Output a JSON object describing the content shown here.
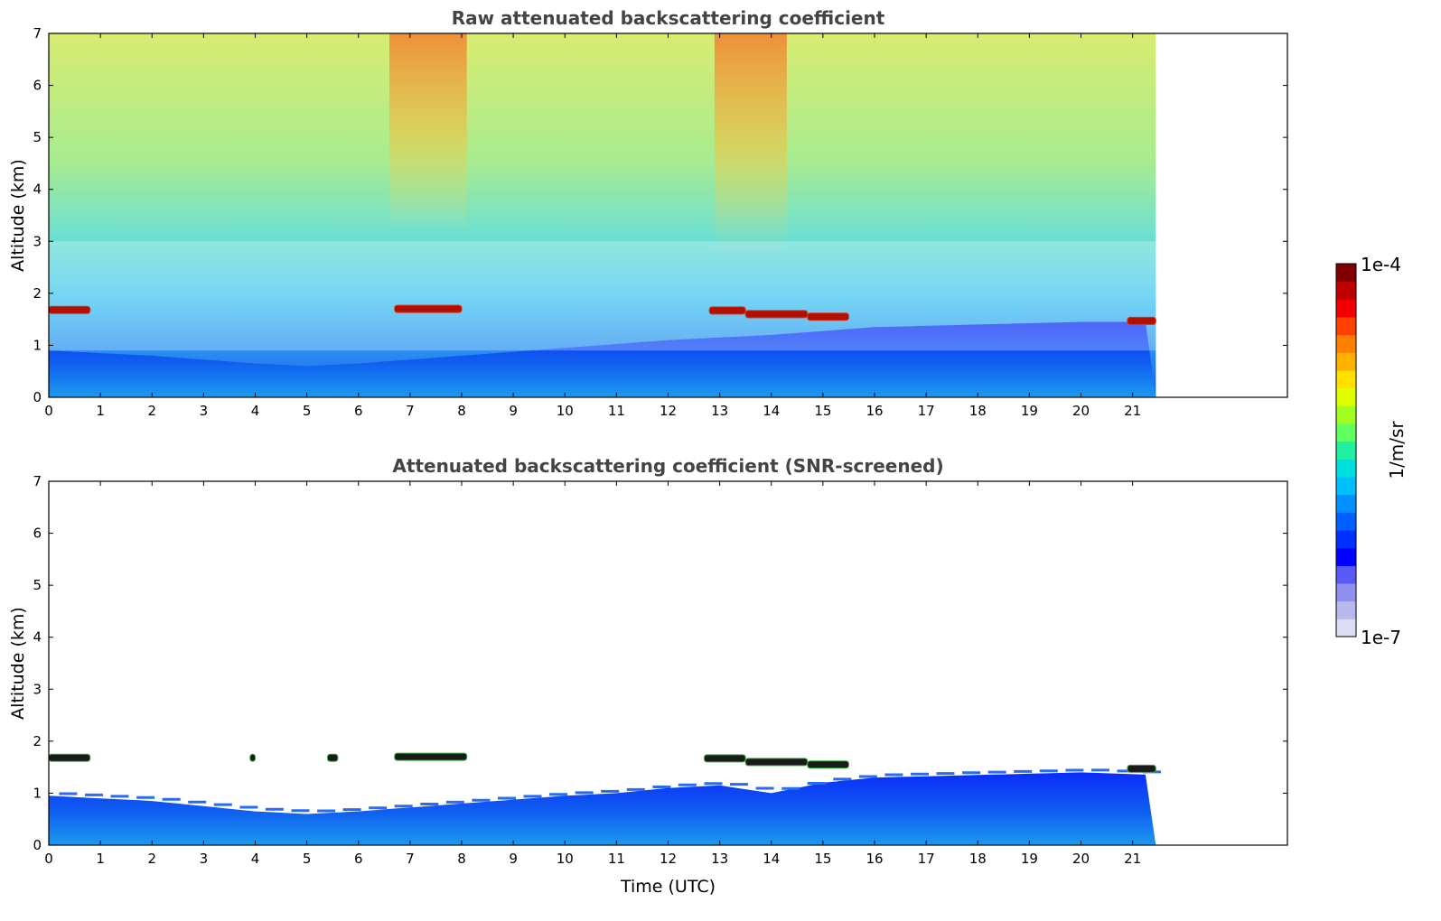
{
  "chart_data": [
    {
      "type": "heatmap",
      "title": "Raw attenuated backscattering coefficient",
      "xlabel": "",
      "ylabel": "Altitude (km)",
      "xlim": [
        0,
        24
      ],
      "ylim": [
        0,
        7
      ],
      "x_ticks": [
        0,
        1,
        2,
        3,
        4,
        5,
        6,
        7,
        8,
        9,
        10,
        11,
        12,
        13,
        14,
        15,
        16,
        17,
        18,
        19,
        20,
        21
      ],
      "y_ticks": [
        0,
        1,
        2,
        3,
        4,
        5,
        6,
        7
      ],
      "data_extent_hours": [
        0,
        21.45
      ],
      "background": "noisy speckled field: blue near ground, cyan/green mid-levels, green/yellow aloft, orange/red aloft near 7-8 h and 13-14 h",
      "features": [
        {
          "name": "cloud layer",
          "t_start": 0.0,
          "t_end": 0.8,
          "altitude_km": 1.68,
          "level": "high"
        },
        {
          "name": "cloud layer",
          "t_start": 6.7,
          "t_end": 8.0,
          "altitude_km": 1.7,
          "level": "high"
        },
        {
          "name": "cloud layer",
          "t_start": 12.8,
          "t_end": 13.5,
          "altitude_km": 1.67,
          "level": "high"
        },
        {
          "name": "cloud layer",
          "t_start": 13.5,
          "t_end": 14.7,
          "altitude_km": 1.6,
          "level": "high"
        },
        {
          "name": "cloud layer",
          "t_start": 14.7,
          "t_end": 15.5,
          "altitude_km": 1.55,
          "level": "high"
        },
        {
          "name": "cloud layer",
          "t_start": 20.9,
          "t_end": 21.45,
          "altitude_km": 1.47,
          "level": "high"
        }
      ],
      "boundary_layer_top_km": {
        "x": [
          0,
          2,
          4,
          5,
          6,
          8,
          10,
          12,
          14,
          16,
          18,
          20,
          21.45
        ],
        "y": [
          0.9,
          0.8,
          0.65,
          0.6,
          0.65,
          0.8,
          0.95,
          1.1,
          1.2,
          1.35,
          1.4,
          1.45,
          1.45
        ]
      }
    },
    {
      "type": "heatmap",
      "title": "Attenuated backscattering coefficient (SNR-screened)",
      "xlabel": "Time (UTC)",
      "ylabel": "Altitude (km)",
      "xlim": [
        0,
        24
      ],
      "ylim": [
        0,
        7
      ],
      "x_ticks": [
        0,
        1,
        2,
        3,
        4,
        5,
        6,
        7,
        8,
        9,
        10,
        11,
        12,
        13,
        14,
        15,
        16,
        17,
        18,
        19,
        20,
        21
      ],
      "y_ticks": [
        0,
        1,
        2,
        3,
        4,
        5,
        6,
        7
      ],
      "data_extent_hours": [
        0,
        21.45
      ],
      "background": "white (screened out) above boundary layer; blue/cyan boundary layer near ground",
      "features": [
        {
          "name": "cloud layer",
          "t_start": 0.0,
          "t_end": 0.8,
          "altitude_km": 1.68,
          "level": "high"
        },
        {
          "name": "cloud layer",
          "t_start": 3.9,
          "t_end": 4.0,
          "altitude_km": 1.68,
          "level": "high"
        },
        {
          "name": "cloud layer",
          "t_start": 5.4,
          "t_end": 5.6,
          "altitude_km": 1.68,
          "level": "high"
        },
        {
          "name": "cloud layer",
          "t_start": 6.7,
          "t_end": 8.1,
          "altitude_km": 1.7,
          "level": "high"
        },
        {
          "name": "cloud layer",
          "t_start": 12.7,
          "t_end": 13.5,
          "altitude_km": 1.67,
          "level": "high"
        },
        {
          "name": "cloud layer",
          "t_start": 13.5,
          "t_end": 14.7,
          "altitude_km": 1.6,
          "level": "high"
        },
        {
          "name": "cloud layer",
          "t_start": 14.7,
          "t_end": 15.5,
          "altitude_km": 1.55,
          "level": "high"
        },
        {
          "name": "cloud layer",
          "t_start": 20.9,
          "t_end": 21.45,
          "altitude_km": 1.47,
          "level": "high"
        }
      ],
      "boundary_layer_top_km": {
        "x": [
          0,
          2,
          4,
          5,
          6,
          8,
          10,
          11,
          12,
          13,
          14,
          15,
          16,
          18,
          20,
          21.45
        ],
        "y": [
          0.95,
          0.85,
          0.65,
          0.6,
          0.65,
          0.8,
          0.95,
          1.0,
          1.1,
          1.15,
          1.0,
          1.2,
          1.3,
          1.35,
          1.4,
          1.35
        ]
      }
    }
  ],
  "colorbar": {
    "label": "1/m/sr",
    "max_label": "1e-4",
    "min_label": "1e-7",
    "colors": [
      "#dcdcf5",
      "#b8b8ee",
      "#9090f0",
      "#5a5af8",
      "#0000ff",
      "#0030ff",
      "#0060ff",
      "#0090ff",
      "#00c0ff",
      "#00e0e0",
      "#20f0a0",
      "#60ff60",
      "#a0ff20",
      "#e0ff00",
      "#ffe000",
      "#ffb000",
      "#ff8000",
      "#ff4000",
      "#f00000",
      "#c00000",
      "#800000"
    ]
  }
}
